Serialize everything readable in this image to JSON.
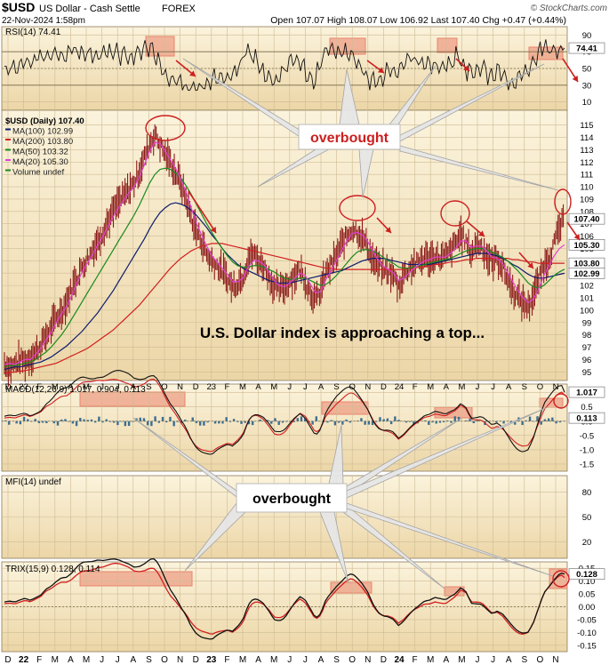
{
  "header": {
    "symbol": "$USD",
    "name": "US Dollar - Cash Settle",
    "exchange": "FOREX",
    "brand": "© StockCharts.com",
    "date": "22-Nov-2024 1:58pm",
    "quote": "Open 107.07   High 108.07   Low 106.92   Last 107.40   Chg +0.47 (+0.44%)"
  },
  "colors": {
    "panel_bg": "#f7eac9",
    "highlight": "#e9846c",
    "price": "#8b1a1a",
    "ma100": "#0b1c6e",
    "ma200": "#d11f1f",
    "ma50": "#168a1c",
    "ma20": "#e33fd6",
    "annotation": "#cc1f1f"
  },
  "x_axis": {
    "months": [
      "D",
      "22",
      "F",
      "M",
      "A",
      "M",
      "J",
      "J",
      "A",
      "S",
      "O",
      "N",
      "D",
      "23",
      "F",
      "M",
      "A",
      "M",
      "J",
      "J",
      "A",
      "S",
      "O",
      "N",
      "D",
      "24",
      "F",
      "M",
      "A",
      "M",
      "J",
      "J",
      "A",
      "S",
      "O",
      "N"
    ]
  },
  "annotations": {
    "overbought_top": "overbought",
    "overbought_bottom": "overbought",
    "headline": "U.S. Dollar index is approaching a top..."
  },
  "chart_data": [
    {
      "type": "line",
      "panel": "rsi",
      "label": "RSI(14) 74.41",
      "y_ticks": [
        90,
        70,
        50,
        30,
        10
      ],
      "ylim": [
        0,
        100
      ],
      "last_value": 74.41,
      "end_labels": [
        "74.41",
        "30"
      ],
      "overbought_level": 70,
      "oversold_level": 30
    },
    {
      "type": "line",
      "panel": "price",
      "legend": [
        {
          "text": "$USD (Daily) 107.40",
          "color": "#000000"
        },
        {
          "text": "MA(100) 102.99",
          "color": "#0b1c6e"
        },
        {
          "text": "MA(200) 103.80",
          "color": "#d11f1f"
        },
        {
          "text": "MA(50) 103.32",
          "color": "#168a1c"
        },
        {
          "text": "MA(20) 105.30",
          "color": "#e33fd6"
        },
        {
          "text": "Volume undef",
          "color": "#168a1c"
        }
      ],
      "y_ticks": [
        115,
        114,
        113,
        112,
        111,
        110,
        109,
        108,
        107,
        106,
        105,
        104,
        103,
        102,
        101,
        100,
        99,
        98,
        97,
        96,
        95
      ],
      "ylim": [
        94.3,
        116.2
      ],
      "end_labels": [
        "107.40",
        "105.30",
        "103.80",
        "102.99"
      ],
      "close": [
        95.7,
        95.3,
        95.6,
        96.0,
        95.8,
        96.2,
        96.6,
        97.2,
        97.9,
        98.6,
        99.4,
        99.9,
        100.7,
        101.8,
        102.7,
        103.5,
        104.2,
        104.9,
        105.6,
        106.4,
        107.2,
        108.0,
        108.7,
        109.2,
        109.8,
        110.3,
        111.3,
        112.4,
        113.5,
        114.2,
        113.4,
        112.7,
        112.0,
        111.1,
        110.3,
        109.0,
        107.6,
        106.4,
        105.6,
        104.5,
        104.0,
        103.6,
        103.2,
        102.5,
        101.9,
        102.3,
        102.8,
        104.2,
        104.6,
        104.0,
        103.6,
        102.7,
        101.9,
        101.6,
        101.9,
        102.4,
        102.8,
        103.3,
        102.4,
        101.4,
        100.8,
        101.6,
        103.1,
        103.6,
        104.4,
        105.3,
        106.0,
        106.6,
        106.4,
        105.9,
        105.2,
        104.1,
        103.6,
        103.3,
        103.1,
        102.8,
        101.9,
        102.9,
        103.4,
        103.7,
        103.9,
        104.3,
        104.1,
        104.4,
        104.2,
        104.3,
        104.8,
        105.4,
        106.2,
        105.5,
        104.6,
        105.4,
        105.2,
        104.4,
        103.9,
        104.2,
        103.5,
        102.6,
        101.6,
        101.0,
        100.6,
        100.3,
        101.2,
        102.4,
        103.6,
        104.3,
        105.4,
        106.6,
        107.4
      ],
      "ma20": [
        95.6,
        95.7,
        95.6,
        95.8,
        96.0,
        96.0,
        96.4,
        96.9,
        97.6,
        98.2,
        99.0,
        99.7,
        100.3,
        101.2,
        102.2,
        103.1,
        103.8,
        104.5,
        105.3,
        106.0,
        106.8,
        107.6,
        108.3,
        108.9,
        109.5,
        110.0,
        110.8,
        111.8,
        112.9,
        113.6,
        113.5,
        112.9,
        112.2,
        111.5,
        110.6,
        109.6,
        108.3,
        107.1,
        106.1,
        105.2,
        104.4,
        103.9,
        103.4,
        102.9,
        102.3,
        102.3,
        102.6,
        103.5,
        104.0,
        104.0,
        103.7,
        103.1,
        102.4,
        102.0,
        101.9,
        102.2,
        102.6,
        103.0,
        102.8,
        102.1,
        101.4,
        101.5,
        102.5,
        103.2,
        104.0,
        104.8,
        105.6,
        106.2,
        106.3,
        106.1,
        105.6,
        104.8,
        104.1,
        103.6,
        103.3,
        103.0,
        102.4,
        102.6,
        103.0,
        103.4,
        103.7,
        104.0,
        104.1,
        104.3,
        104.3,
        104.3,
        104.6,
        105.0,
        105.6,
        105.6,
        105.1,
        105.2,
        105.2,
        104.8,
        104.3,
        104.2,
        103.8,
        103.1,
        102.3,
        101.6,
        101.0,
        100.6,
        100.9,
        101.7,
        102.8,
        103.6,
        104.4,
        105.0,
        105.3
      ],
      "ma50": [
        95.4,
        95.5,
        95.5,
        95.6,
        95.7,
        95.8,
        96.0,
        96.3,
        96.6,
        97.0,
        97.5,
        98.0,
        98.6,
        99.3,
        100.0,
        100.7,
        101.4,
        102.1,
        102.8,
        103.5,
        104.2,
        104.9,
        105.6,
        106.3,
        107.0,
        107.7,
        108.5,
        109.4,
        110.3,
        111.0,
        111.4,
        111.5,
        111.4,
        111.1,
        110.7,
        110.1,
        109.4,
        108.6,
        107.8,
        107.0,
        106.3,
        105.6,
        105.0,
        104.4,
        103.9,
        103.6,
        103.5,
        103.5,
        103.6,
        103.6,
        103.5,
        103.3,
        103.1,
        102.8,
        102.6,
        102.5,
        102.5,
        102.6,
        102.6,
        102.4,
        102.2,
        102.0,
        102.1,
        102.4,
        102.8,
        103.3,
        103.8,
        104.3,
        104.7,
        104.9,
        104.9,
        104.8,
        104.6,
        104.3,
        104.0,
        103.8,
        103.5,
        103.4,
        103.4,
        103.5,
        103.6,
        103.7,
        103.8,
        103.9,
        104.0,
        104.1,
        104.2,
        104.4,
        104.6,
        104.8,
        104.9,
        105.0,
        105.0,
        104.9,
        104.7,
        104.5,
        104.3,
        104.0,
        103.6,
        103.2,
        102.7,
        102.2,
        101.9,
        101.8,
        102.0,
        102.4,
        102.8,
        103.1,
        103.32
      ],
      "ma100": [
        95.2,
        95.3,
        95.4,
        95.4,
        95.5,
        95.6,
        95.7,
        95.8,
        96.0,
        96.2,
        96.5,
        96.8,
        97.1,
        97.5,
        97.9,
        98.3,
        98.8,
        99.3,
        99.8,
        100.4,
        101.0,
        101.6,
        102.3,
        103.0,
        103.7,
        104.4,
        105.1,
        105.8,
        106.6,
        107.3,
        107.9,
        108.3,
        108.6,
        108.7,
        108.6,
        108.4,
        108.1,
        107.7,
        107.2,
        106.7,
        106.1,
        105.6,
        105.0,
        104.5,
        104.1,
        103.7,
        103.4,
        103.2,
        103.0,
        102.8,
        102.6,
        102.4,
        102.3,
        102.2,
        102.2,
        102.2,
        102.3,
        102.4,
        102.5,
        102.6,
        102.7,
        102.8,
        102.9,
        103.0,
        103.1,
        103.2,
        103.4,
        103.6,
        103.8,
        104.0,
        104.1,
        104.2,
        104.2,
        104.2,
        104.1,
        104.0,
        103.9,
        103.8,
        103.7,
        103.7,
        103.7,
        103.7,
        103.7,
        103.8,
        103.9,
        104.0,
        104.1,
        104.2,
        104.3,
        104.4,
        104.5,
        104.6,
        104.6,
        104.6,
        104.5,
        104.4,
        104.2,
        104.0,
        103.7,
        103.5,
        103.2,
        102.9,
        102.7,
        102.6,
        102.6,
        102.7,
        102.8,
        102.9,
        102.99
      ],
      "ma200": [
        94.9,
        94.95,
        95.0,
        95.05,
        95.1,
        95.2,
        95.3,
        95.4,
        95.5,
        95.6,
        95.7,
        95.9,
        96.1,
        96.3,
        96.5,
        96.7,
        96.9,
        97.2,
        97.5,
        97.8,
        98.1,
        98.4,
        98.8,
        99.2,
        99.6,
        100.0,
        100.4,
        100.9,
        101.4,
        101.9,
        102.4,
        102.9,
        103.4,
        103.8,
        104.2,
        104.5,
        104.8,
        105.0,
        105.2,
        105.3,
        105.4,
        105.4,
        105.4,
        105.3,
        105.2,
        105.1,
        105.0,
        104.9,
        104.8,
        104.7,
        104.6,
        104.5,
        104.4,
        104.3,
        104.2,
        104.1,
        104.0,
        103.9,
        103.8,
        103.7,
        103.6,
        103.5,
        103.4,
        103.4,
        103.3,
        103.3,
        103.3,
        103.3,
        103.3,
        103.3,
        103.3,
        103.3,
        103.3,
        103.3,
        103.3,
        103.3,
        103.3,
        103.3,
        103.4,
        103.4,
        103.5,
        103.5,
        103.6,
        103.7,
        103.7,
        103.8,
        103.9,
        103.9,
        104.0,
        104.1,
        104.1,
        104.2,
        104.2,
        104.2,
        104.2,
        104.2,
        104.2,
        104.2,
        104.1,
        104.1,
        104.0,
        103.9,
        103.9,
        103.8,
        103.8,
        103.8,
        103.8,
        103.8,
        103.8
      ]
    },
    {
      "type": "line",
      "panel": "macd",
      "label": "MACD(12,26,9) 1.017, 0.904, 0.113",
      "y_ticks": [
        1.0,
        0.5,
        0.0,
        -0.5,
        -1.0,
        -1.5
      ],
      "ylim": [
        -1.75,
        1.3
      ],
      "end_labels": [
        "1.017",
        "0.113"
      ],
      "macd": 1.017,
      "signal": 0.904,
      "histogram": 0.113
    },
    {
      "type": "line",
      "panel": "mfi",
      "label": "MFI(14) undef",
      "y_ticks": [
        80,
        50,
        20
      ],
      "ylim": [
        0,
        100
      ]
    },
    {
      "type": "line",
      "panel": "trix",
      "label": "TRIX(15,9) 0.128, 0.114",
      "y_ticks": [
        0.15,
        0.1,
        0.05,
        0.0,
        -0.05,
        -0.1,
        -0.15
      ],
      "ylim": [
        -0.175,
        0.175
      ],
      "end_labels": [
        "0.128"
      ],
      "trix": 0.128,
      "signal": 0.114
    }
  ]
}
